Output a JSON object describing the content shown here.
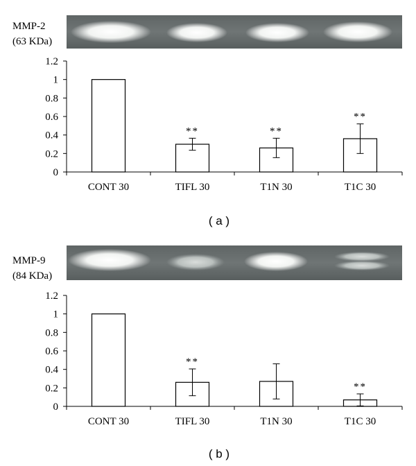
{
  "panels": [
    {
      "caption": "( a )",
      "blot_label_line1": "MMP-2",
      "blot_label_line2": "(63 KDa)"
    },
    {
      "caption": "( b )",
      "blot_label_line1": "MMP-9",
      "blot_label_line2": "(84 KDa)"
    }
  ],
  "chart_data": [
    {
      "type": "bar",
      "categories": [
        "CONT 30",
        "TIFL 30",
        "T1N 30",
        "T1C 30"
      ],
      "values": [
        1.0,
        0.3,
        0.26,
        0.36
      ],
      "error": [
        0,
        0.065,
        0.105,
        0.16
      ],
      "significance": [
        "",
        "**",
        "**",
        "**"
      ],
      "ylim": [
        0,
        1.2
      ],
      "yticks": [
        "0",
        "0.2",
        "0.4",
        "0.6",
        "0.8",
        "1",
        "1.2"
      ],
      "grid": false,
      "legend": "none"
    },
    {
      "type": "bar",
      "categories": [
        "CONT 30",
        "TIFL 30",
        "T1N 30",
        "T1C 30"
      ],
      "values": [
        1.0,
        0.26,
        0.27,
        0.07
      ],
      "error": [
        0,
        0.145,
        0.19,
        0.065
      ],
      "significance": [
        "",
        "**",
        "",
        "**"
      ],
      "ylim": [
        0,
        1.2
      ],
      "yticks": [
        "0",
        "0.2",
        "0.4",
        "0.6",
        "0.8",
        "1",
        "1.2"
      ],
      "grid": false,
      "legend": "none"
    }
  ]
}
